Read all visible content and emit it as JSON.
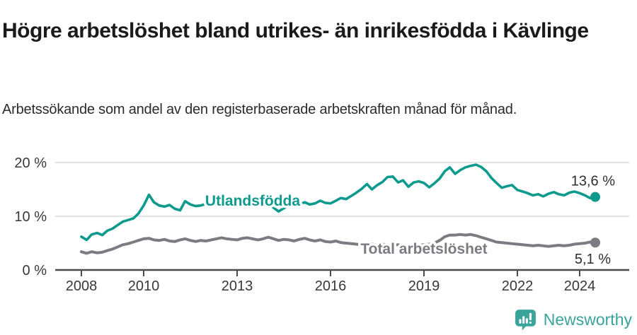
{
  "header": {
    "title": "Högre arbetslöshet bland utrikes- än inrikesfödda i Kävlinge",
    "subtitle": "Arbetssökande som andel av den registerbaserade arbetskraften månad för månad."
  },
  "footer": {
    "brand": "Newsworthy",
    "brand_color": "#3aa39a",
    "logo_icon": "speech-bubble-bar-chart-icon"
  },
  "colors": {
    "foreign_born_line": "#0e9a8d",
    "total_line": "#7d7a81",
    "grid": "#dadada",
    "axis": "#4b4b4b",
    "tick_text": "#383838",
    "end_label_text": "#2e2e2e"
  },
  "chart_data": {
    "type": "line",
    "title": "Högre arbetslöshet bland utrikes- än inrikesfödda i Kävlinge",
    "subtitle": "Arbetssökande som andel av den registerbaserade arbetskraften månad för månad.",
    "xlabel": "",
    "ylabel": "",
    "x_axis": {
      "ticks": [
        2008,
        2010,
        2013,
        2016,
        2019,
        2022,
        2024
      ],
      "tick_labels": [
        "2008",
        "2010",
        "2013",
        "2016",
        "2019",
        "2022",
        "2024"
      ]
    },
    "y_axis": {
      "ticks": [
        0,
        10,
        20
      ],
      "tick_labels": [
        "0 %",
        "10 %",
        "20 %"
      ],
      "range": [
        0,
        22
      ]
    },
    "grid": "horizontal",
    "legend": "inline-labels",
    "series": [
      {
        "name": "Utlandsfödda",
        "color": "#0e9a8d",
        "line_width": 3.6,
        "end_label": "13,6 %",
        "end_value": 13.6,
        "inline_label": {
          "x": 2013.5,
          "y": 13.0
        },
        "points": [
          [
            2008.0,
            6.2
          ],
          [
            2008.17,
            5.6
          ],
          [
            2008.33,
            6.6
          ],
          [
            2008.5,
            6.9
          ],
          [
            2008.67,
            6.5
          ],
          [
            2008.83,
            7.3
          ],
          [
            2009.0,
            7.7
          ],
          [
            2009.17,
            8.4
          ],
          [
            2009.33,
            9.0
          ],
          [
            2009.5,
            9.3
          ],
          [
            2009.67,
            9.6
          ],
          [
            2009.83,
            10.5
          ],
          [
            2010.0,
            12.0
          ],
          [
            2010.17,
            14.0
          ],
          [
            2010.33,
            12.6
          ],
          [
            2010.5,
            12.0
          ],
          [
            2010.67,
            11.8
          ],
          [
            2010.83,
            12.1
          ],
          [
            2011.0,
            11.4
          ],
          [
            2011.17,
            11.1
          ],
          [
            2011.33,
            12.8
          ],
          [
            2011.5,
            12.2
          ],
          [
            2011.67,
            11.9
          ],
          [
            2011.83,
            12.0
          ],
          [
            2012.0,
            12.3
          ],
          [
            2012.17,
            12.6
          ],
          [
            2012.33,
            12.2
          ],
          [
            2012.5,
            12.4
          ],
          [
            2012.67,
            12.7
          ],
          [
            2012.83,
            12.4
          ],
          [
            2013.0,
            12.2
          ],
          [
            2013.17,
            12.5
          ],
          [
            2013.33,
            12.3
          ],
          [
            2013.5,
            12.6
          ],
          [
            2013.67,
            12.3
          ],
          [
            2013.83,
            12.1
          ],
          [
            2014.0,
            12.4
          ],
          [
            2014.17,
            11.6
          ],
          [
            2014.33,
            10.9
          ],
          [
            2014.5,
            11.5
          ],
          [
            2014.67,
            12.0
          ],
          [
            2014.83,
            11.9
          ],
          [
            2015.0,
            12.2
          ],
          [
            2015.17,
            12.6
          ],
          [
            2015.33,
            12.2
          ],
          [
            2015.5,
            12.4
          ],
          [
            2015.67,
            12.9
          ],
          [
            2015.83,
            12.5
          ],
          [
            2016.0,
            12.4
          ],
          [
            2016.17,
            12.9
          ],
          [
            2016.33,
            13.4
          ],
          [
            2016.5,
            13.2
          ],
          [
            2016.67,
            13.8
          ],
          [
            2016.83,
            14.4
          ],
          [
            2017.0,
            15.1
          ],
          [
            2017.17,
            16.0
          ],
          [
            2017.33,
            15.0
          ],
          [
            2017.5,
            15.8
          ],
          [
            2017.67,
            16.4
          ],
          [
            2017.83,
            17.3
          ],
          [
            2018.0,
            17.4
          ],
          [
            2018.17,
            16.3
          ],
          [
            2018.33,
            16.7
          ],
          [
            2018.5,
            15.5
          ],
          [
            2018.67,
            16.3
          ],
          [
            2018.83,
            16.5
          ],
          [
            2019.0,
            16.2
          ],
          [
            2019.17,
            15.4
          ],
          [
            2019.33,
            16.1
          ],
          [
            2019.5,
            17.0
          ],
          [
            2019.67,
            18.4
          ],
          [
            2019.83,
            19.1
          ],
          [
            2020.0,
            17.9
          ],
          [
            2020.17,
            18.6
          ],
          [
            2020.33,
            19.1
          ],
          [
            2020.5,
            19.4
          ],
          [
            2020.67,
            19.6
          ],
          [
            2020.83,
            19.2
          ],
          [
            2021.0,
            18.4
          ],
          [
            2021.17,
            17.1
          ],
          [
            2021.33,
            16.2
          ],
          [
            2021.5,
            15.3
          ],
          [
            2021.67,
            15.6
          ],
          [
            2021.83,
            15.8
          ],
          [
            2022.0,
            14.9
          ],
          [
            2022.17,
            14.6
          ],
          [
            2022.33,
            14.3
          ],
          [
            2022.5,
            13.9
          ],
          [
            2022.67,
            14.1
          ],
          [
            2022.83,
            13.7
          ],
          [
            2023.0,
            14.2
          ],
          [
            2023.17,
            14.5
          ],
          [
            2023.33,
            14.1
          ],
          [
            2023.5,
            13.9
          ],
          [
            2023.67,
            14.4
          ],
          [
            2023.83,
            14.6
          ],
          [
            2024.0,
            14.3
          ],
          [
            2024.17,
            13.9
          ],
          [
            2024.33,
            13.4
          ],
          [
            2024.5,
            13.6
          ]
        ]
      },
      {
        "name": "Total arbetslöshet",
        "color": "#7d7a81",
        "line_width": 4,
        "end_label": "5,1 %",
        "end_value": 5.1,
        "inline_label": {
          "x": 2019.0,
          "y": 4.1
        },
        "points": [
          [
            2008.0,
            3.4
          ],
          [
            2008.17,
            3.1
          ],
          [
            2008.33,
            3.4
          ],
          [
            2008.5,
            3.2
          ],
          [
            2008.67,
            3.3
          ],
          [
            2008.83,
            3.6
          ],
          [
            2009.0,
            3.9
          ],
          [
            2009.17,
            4.3
          ],
          [
            2009.33,
            4.7
          ],
          [
            2009.5,
            4.9
          ],
          [
            2009.67,
            5.2
          ],
          [
            2009.83,
            5.5
          ],
          [
            2010.0,
            5.8
          ],
          [
            2010.17,
            5.9
          ],
          [
            2010.33,
            5.6
          ],
          [
            2010.5,
            5.5
          ],
          [
            2010.67,
            5.7
          ],
          [
            2010.83,
            5.4
          ],
          [
            2011.0,
            5.3
          ],
          [
            2011.17,
            5.6
          ],
          [
            2011.33,
            5.8
          ],
          [
            2011.5,
            5.5
          ],
          [
            2011.67,
            5.3
          ],
          [
            2011.83,
            5.5
          ],
          [
            2012.0,
            5.4
          ],
          [
            2012.17,
            5.6
          ],
          [
            2012.33,
            5.8
          ],
          [
            2012.5,
            6.0
          ],
          [
            2012.67,
            5.8
          ],
          [
            2012.83,
            5.7
          ],
          [
            2013.0,
            5.6
          ],
          [
            2013.17,
            5.9
          ],
          [
            2013.33,
            6.0
          ],
          [
            2013.5,
            5.8
          ],
          [
            2013.67,
            5.6
          ],
          [
            2013.83,
            5.8
          ],
          [
            2014.0,
            6.1
          ],
          [
            2014.17,
            5.8
          ],
          [
            2014.33,
            5.5
          ],
          [
            2014.5,
            5.7
          ],
          [
            2014.67,
            5.6
          ],
          [
            2014.83,
            5.4
          ],
          [
            2015.0,
            5.7
          ],
          [
            2015.17,
            5.9
          ],
          [
            2015.33,
            5.6
          ],
          [
            2015.5,
            5.4
          ],
          [
            2015.67,
            5.6
          ],
          [
            2015.83,
            5.3
          ],
          [
            2016.0,
            5.2
          ],
          [
            2016.17,
            5.4
          ],
          [
            2016.33,
            5.1
          ],
          [
            2016.5,
            5.0
          ],
          [
            2016.67,
            4.9
          ],
          [
            2016.83,
            4.8
          ],
          [
            2017.0,
            4.7
          ],
          [
            2017.17,
            4.9
          ],
          [
            2017.33,
            4.8
          ],
          [
            2017.5,
            4.6
          ],
          [
            2017.67,
            4.8
          ],
          [
            2017.83,
            4.7
          ],
          [
            2018.0,
            4.6
          ],
          [
            2018.17,
            4.7
          ],
          [
            2018.33,
            4.5
          ],
          [
            2018.5,
            4.6
          ],
          [
            2018.67,
            4.7
          ],
          [
            2018.83,
            4.6
          ],
          [
            2019.0,
            4.7
          ],
          [
            2019.17,
            4.8
          ],
          [
            2019.33,
            5.0
          ],
          [
            2019.5,
            5.5
          ],
          [
            2019.67,
            6.2
          ],
          [
            2019.83,
            6.5
          ],
          [
            2020.0,
            6.5
          ],
          [
            2020.17,
            6.6
          ],
          [
            2020.33,
            6.5
          ],
          [
            2020.5,
            6.6
          ],
          [
            2020.67,
            6.4
          ],
          [
            2020.83,
            6.1
          ],
          [
            2021.0,
            5.8
          ],
          [
            2021.17,
            5.5
          ],
          [
            2021.33,
            5.2
          ],
          [
            2021.5,
            5.1
          ],
          [
            2021.67,
            5.0
          ],
          [
            2021.83,
            4.9
          ],
          [
            2022.0,
            4.8
          ],
          [
            2022.17,
            4.7
          ],
          [
            2022.33,
            4.6
          ],
          [
            2022.5,
            4.5
          ],
          [
            2022.67,
            4.6
          ],
          [
            2022.83,
            4.5
          ],
          [
            2023.0,
            4.4
          ],
          [
            2023.17,
            4.5
          ],
          [
            2023.33,
            4.6
          ],
          [
            2023.5,
            4.5
          ],
          [
            2023.67,
            4.6
          ],
          [
            2023.83,
            4.8
          ],
          [
            2024.0,
            4.9
          ],
          [
            2024.17,
            5.0
          ],
          [
            2024.33,
            5.2
          ],
          [
            2024.5,
            5.1
          ]
        ]
      }
    ]
  }
}
